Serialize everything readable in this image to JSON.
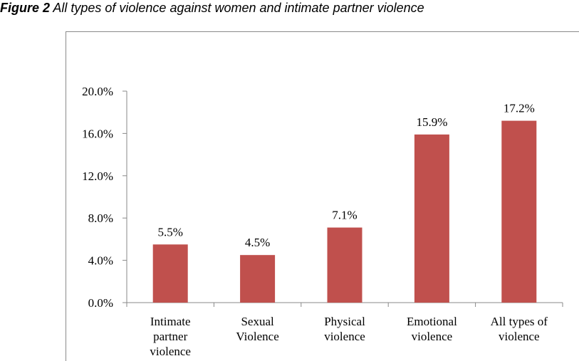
{
  "figure": {
    "number": "Figure 2",
    "caption": "All types of violence against women and intimate partner violence"
  },
  "chart_data": {
    "type": "bar",
    "title": "",
    "xlabel": "",
    "ylabel": "",
    "ylim": [
      0,
      20
    ],
    "yticks": [
      0,
      4,
      8,
      12,
      16,
      20
    ],
    "ytick_labels": [
      "0.0%",
      "4.0%",
      "8.0%",
      "12.0%",
      "16.0%",
      "20.0%"
    ],
    "grid": false,
    "legend": "none",
    "bar_color": "#c0504d",
    "categories": [
      [
        "Intimate",
        "partner",
        "violence"
      ],
      [
        "Sexual",
        "Violence"
      ],
      [
        "Physical",
        "violence"
      ],
      [
        "Emotional",
        "violence"
      ],
      [
        "All types of",
        "violence"
      ]
    ],
    "values": [
      5.5,
      4.5,
      7.1,
      15.9,
      17.2
    ],
    "data_labels": [
      "5.5%",
      "4.5%",
      "7.1%",
      "15.9%",
      "17.2%"
    ]
  }
}
